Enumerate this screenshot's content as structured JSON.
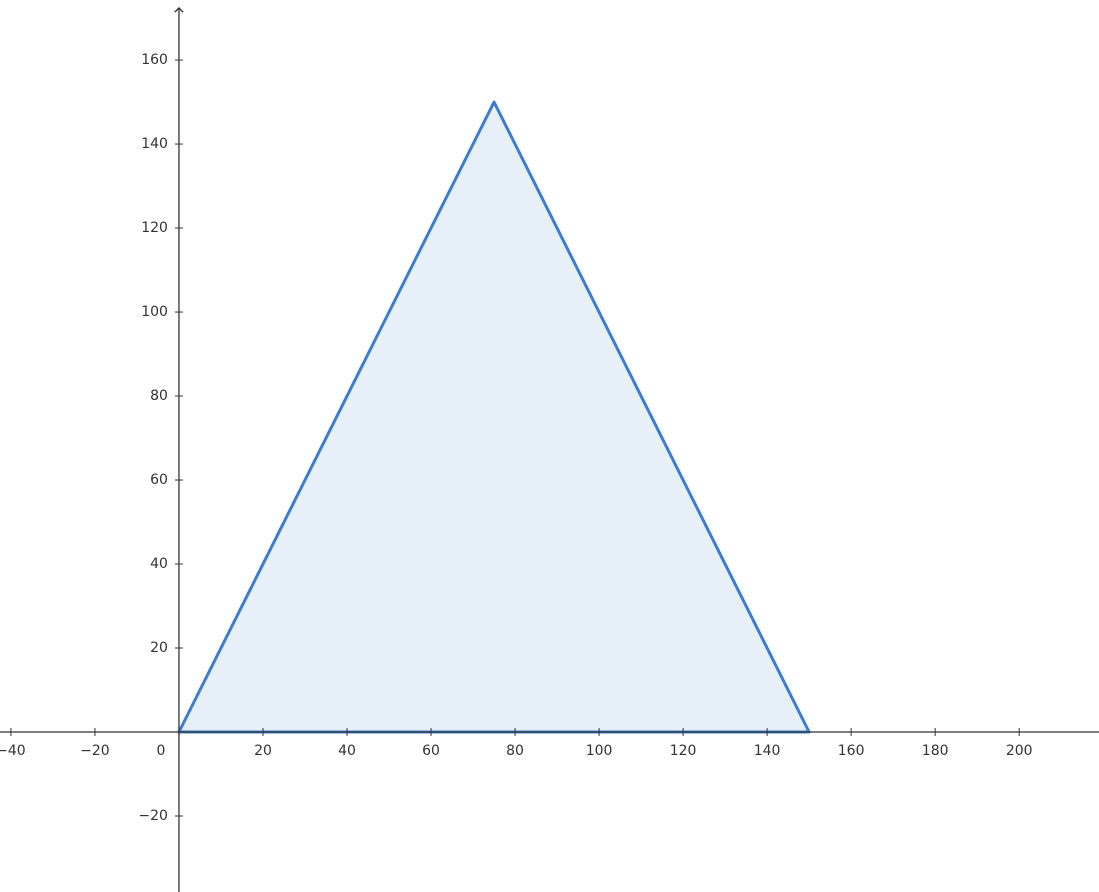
{
  "chart_data": {
    "type": "polygon",
    "x": [
      0,
      75,
      150
    ],
    "values": [
      0,
      150,
      0
    ],
    "color": "#3d7dd0",
    "fill": "#e7eff9",
    "xlim": [
      -42.6,
      219
    ],
    "ylim": [
      -38.1,
      174.3
    ],
    "xticks": [
      {
        "value": -40,
        "label": "−40"
      },
      {
        "value": -20,
        "label": "−20"
      },
      0,
      20,
      40,
      60,
      80,
      100,
      120,
      140,
      160,
      180,
      200
    ],
    "yticks": [
      {
        "value": -20,
        "label": "−20"
      },
      20,
      40,
      60,
      80,
      100,
      120,
      140,
      160
    ]
  }
}
